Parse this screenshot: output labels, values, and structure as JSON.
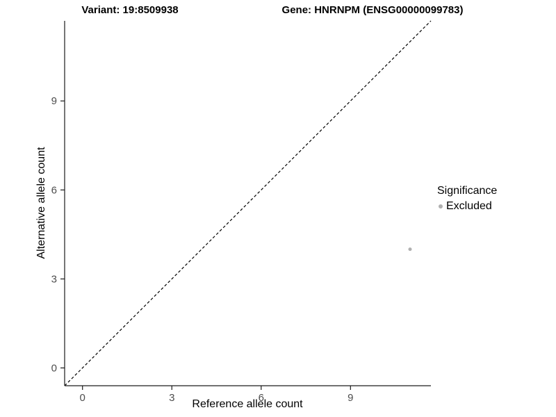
{
  "chart_data": {
    "type": "scatter",
    "titles": {
      "variant": "Variant: 19:8509938",
      "gene": "Gene: HNRNPM (ENSG00000099783)"
    },
    "xlabel": "Reference allele count",
    "ylabel": "Alternative allele count",
    "x_ticks": [
      0,
      3,
      6,
      9
    ],
    "y_ticks": [
      0,
      3,
      6,
      9
    ],
    "xlim": [
      -0.6,
      11.7
    ],
    "ylim": [
      -0.6,
      11.7
    ],
    "grid": false,
    "points": [
      {
        "x": 11,
        "y": 4,
        "significance": "Excluded"
      }
    ],
    "identity_line": {
      "style": "dashed",
      "slope": 1,
      "intercept": 0
    },
    "legend": {
      "title": "Significance",
      "position": "right",
      "entries": [
        {
          "label": "Excluded",
          "color": "#b0b0b0"
        }
      ]
    },
    "colors": {
      "point_excluded": "#b0b0b0",
      "axis": "#1a1a1a",
      "tick_label": "#4d4d4d",
      "line": "#000000"
    }
  }
}
